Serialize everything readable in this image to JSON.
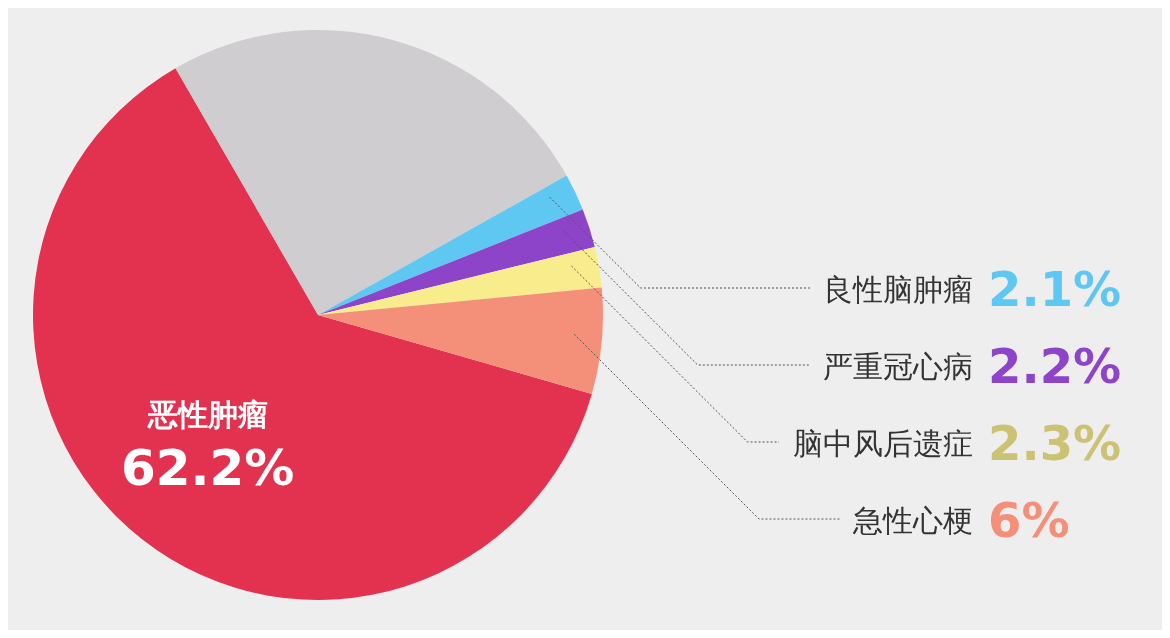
{
  "chart_data": {
    "type": "pie",
    "categories": [
      "恶性肿瘤",
      null,
      "良性脑肿瘤",
      "严重冠心病",
      "脑中风后遗症",
      "急性心梗"
    ],
    "values": [
      62.2,
      25.2,
      2.1,
      2.2,
      2.3,
      6
    ],
    "colors": [
      "#e2324f",
      "#cfcdd0",
      "#5ec8f2",
      "#8e44c8",
      "#f8ec8c",
      "#f4907a"
    ],
    "value_labels": [
      "62.2%",
      null,
      "2.1%",
      "2.2%",
      "2.3%",
      "6%"
    ],
    "legend": false
  }
}
